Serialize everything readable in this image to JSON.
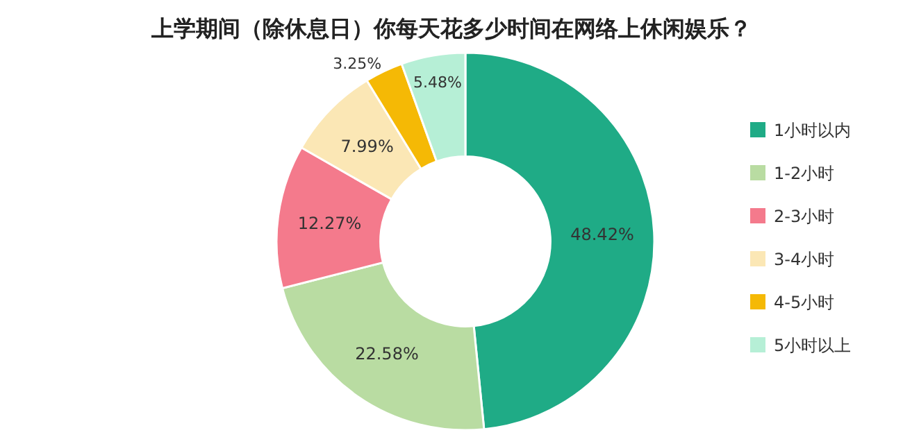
{
  "chart_data": {
    "type": "donut",
    "title": "上学期间（除休息日）你每天花多少时间在网络上休闲娱乐？",
    "categories": [
      "1小时以内",
      "1-2小时",
      "2-3小时",
      "3-4小时",
      "4-5小时",
      "5小时以上"
    ],
    "values": [
      48.42,
      22.58,
      12.27,
      7.99,
      3.25,
      5.48
    ],
    "value_labels": [
      "48.42%",
      "22.58%",
      "12.27%",
      "7.99%",
      "3.25%",
      "5.48%"
    ],
    "colors": [
      "#1fab86",
      "#b9dca2",
      "#f47a8c",
      "#fbe7b5",
      "#f5b905",
      "#b6efd6"
    ],
    "legend": "right"
  }
}
